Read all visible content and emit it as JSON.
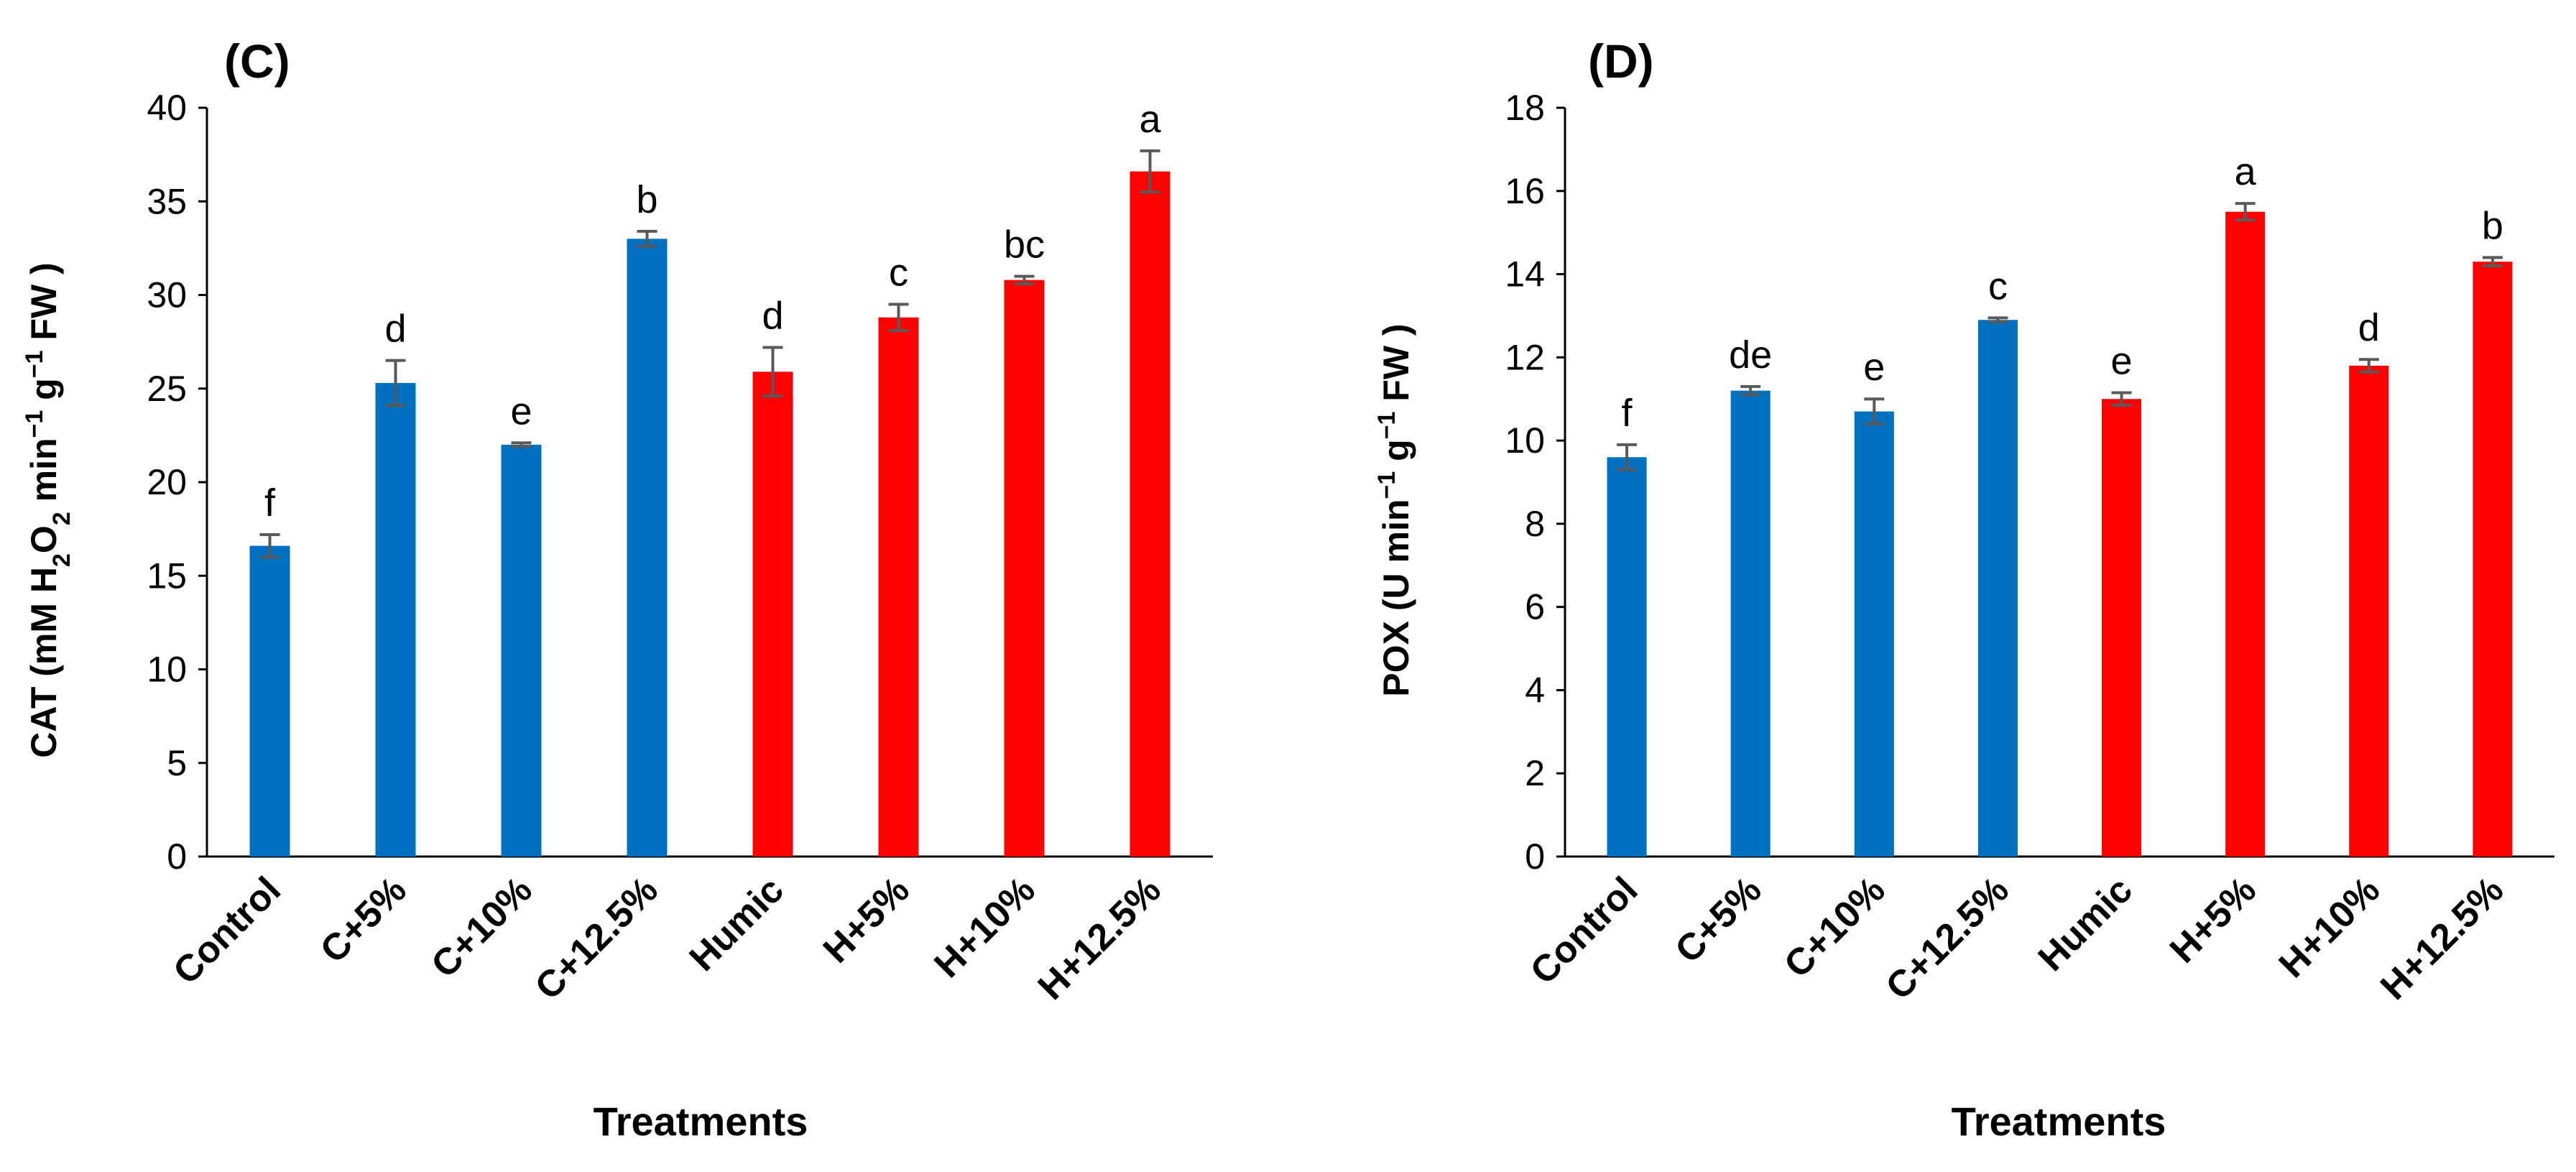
{
  "chart_data": [
    {
      "type": "bar",
      "title": "(C)",
      "categories": [
        "Control",
        "C+5%",
        "C+10%",
        "C+12.5%",
        "Humic",
        "H+5%",
        "H+10%",
        "H+12.5%"
      ],
      "values": [
        16.6,
        25.3,
        22.0,
        33.0,
        25.9,
        28.8,
        30.8,
        36.6
      ],
      "errors": [
        0.6,
        1.2,
        0.1,
        0.4,
        1.3,
        0.7,
        0.2,
        1.1
      ],
      "letters": [
        "f",
        "d",
        "e",
        "b",
        "d",
        "c",
        "bc",
        "a"
      ],
      "bar_colors": [
        "#0070C0",
        "#0070C0",
        "#0070C0",
        "#0070C0",
        "#FF0000",
        "#FF0000",
        "#FF0000",
        "#FF0000"
      ],
      "xlabel": "Treatments",
      "ylabel": {
        "prefix": "CAT (mM H",
        "sub1": "2",
        "mid1": "O",
        "sub2": "2",
        "mid2": " min",
        "sup1": "−1",
        "mid3": " g",
        "sup2": "−1",
        "suffix": " FW )"
      },
      "ylim": [
        0,
        40
      ],
      "yticks": [
        0,
        5,
        10,
        15,
        20,
        25,
        30,
        35,
        40
      ]
    },
    {
      "type": "bar",
      "title": "(D)",
      "categories": [
        "Control",
        "C+5%",
        "C+10%",
        "C+12.5%",
        "Humic",
        "H+5%",
        "H+10%",
        "H+12.5%"
      ],
      "values": [
        9.6,
        11.2,
        10.7,
        12.9,
        11.0,
        15.5,
        11.8,
        14.3
      ],
      "errors": [
        0.3,
        0.1,
        0.3,
        0.05,
        0.15,
        0.2,
        0.15,
        0.1
      ],
      "letters": [
        "f",
        "de",
        "e",
        "c",
        "e",
        "a",
        "d",
        "b"
      ],
      "bar_colors": [
        "#0070C0",
        "#0070C0",
        "#0070C0",
        "#0070C0",
        "#FF0000",
        "#FF0000",
        "#FF0000",
        "#FF0000"
      ],
      "xlabel": "Treatments",
      "ylabel": {
        "prefix": "POX (U min",
        "sup1": "−1",
        "mid3": " g",
        "sup2": "−1",
        "suffix": " FW )"
      },
      "ylim": [
        0,
        18
      ],
      "yticks": [
        0,
        2,
        4,
        6,
        8,
        10,
        12,
        14,
        16,
        18
      ]
    }
  ]
}
